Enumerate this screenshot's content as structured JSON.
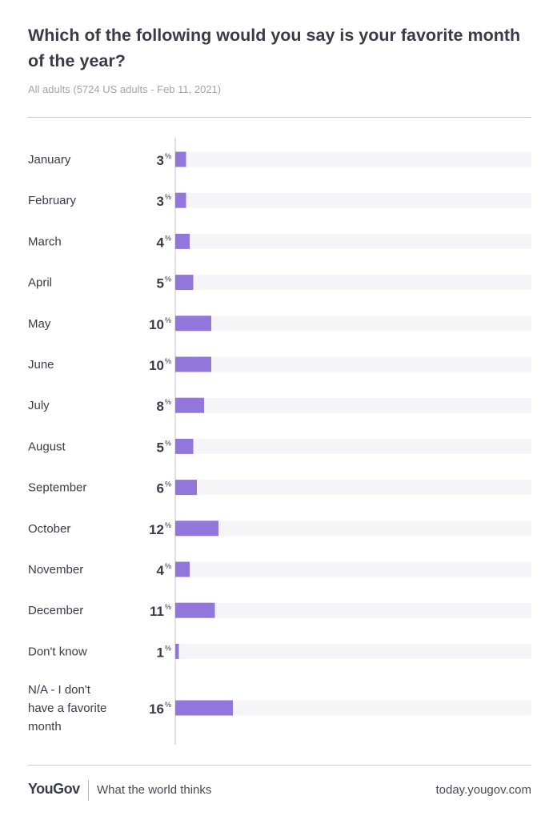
{
  "header": {
    "title": "Which of the following would you say is your favorite month of the year?",
    "subtitle": "All adults (5724 US adults - Feb 11, 2021)"
  },
  "colors": {
    "bar": "#9376db",
    "track": "#f5f5f8",
    "axis": "#d6d6dc",
    "label": "#3b3a4a",
    "value": "#3b3a4a"
  },
  "chart_data": {
    "type": "bar",
    "orientation": "horizontal",
    "title": "Which of the following would you say is your favorite month of the year?",
    "unit": "%",
    "xlim": [
      0,
      100
    ],
    "categories": [
      "January",
      "February",
      "March",
      "April",
      "May",
      "June",
      "July",
      "August",
      "September",
      "October",
      "November",
      "December",
      "Don't know",
      "N/A - I don't have a favorite month"
    ],
    "values": [
      3,
      3,
      4,
      5,
      10,
      10,
      8,
      5,
      6,
      12,
      4,
      11,
      1,
      16
    ]
  },
  "footer": {
    "logo": "YouGov",
    "tagline": "What the world thinks",
    "url": "today.yougov.com"
  }
}
